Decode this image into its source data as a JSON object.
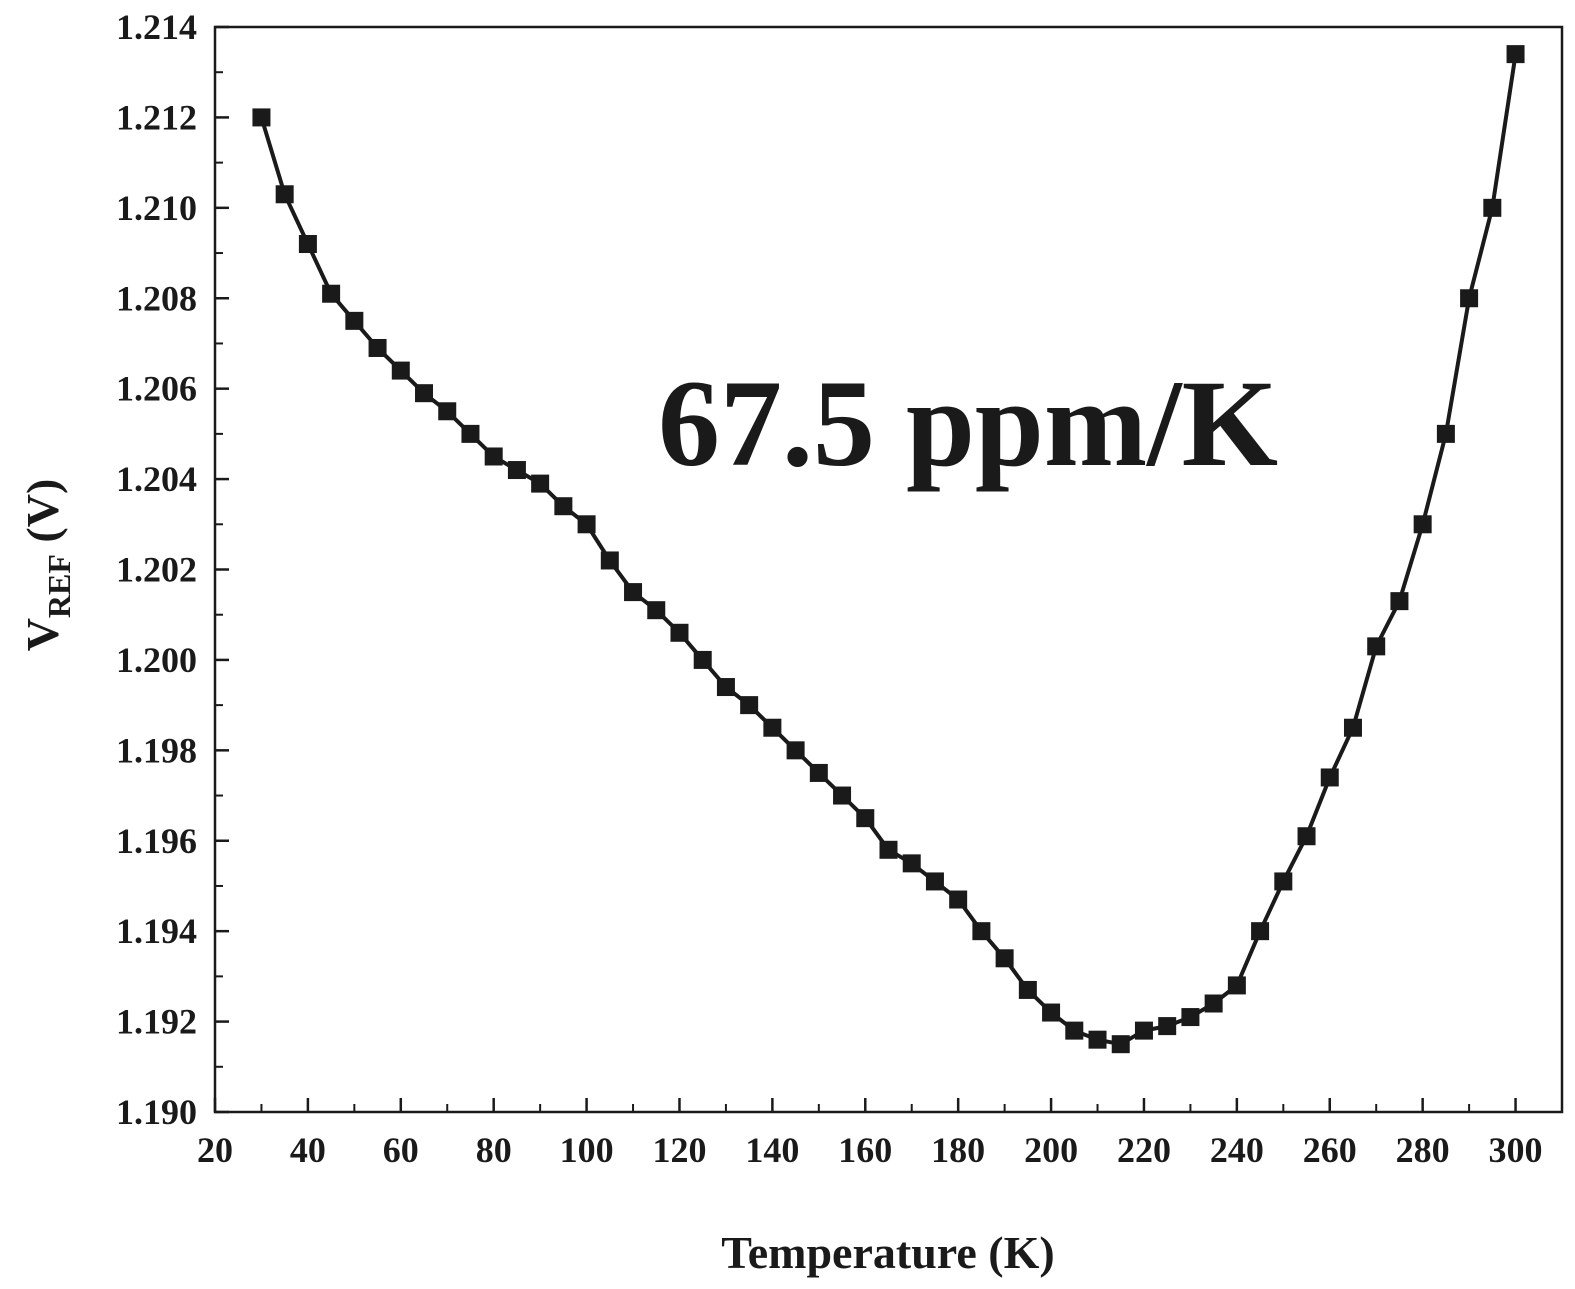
{
  "chart_data": {
    "type": "line",
    "title": "",
    "xlabel": "Temperature (K)",
    "ylabel": {
      "main": "V",
      "subscript": "REF",
      "unit": " (V)"
    },
    "annotation": "67.5 ppm/K",
    "xlim": [
      20,
      310
    ],
    "ylim": [
      1.19,
      1.214
    ],
    "xticks": [
      {
        "value": 20,
        "label": "20"
      },
      {
        "value": 40,
        "label": "40"
      },
      {
        "value": 60,
        "label": "60"
      },
      {
        "value": 80,
        "label": "80"
      },
      {
        "value": 100,
        "label": "100"
      },
      {
        "value": 120,
        "label": "120"
      },
      {
        "value": 140,
        "label": "140"
      },
      {
        "value": 160,
        "label": "160"
      },
      {
        "value": 180,
        "label": "180"
      },
      {
        "value": 200,
        "label": "200"
      },
      {
        "value": 220,
        "label": "220"
      },
      {
        "value": 240,
        "label": "240"
      },
      {
        "value": 260,
        "label": "260"
      },
      {
        "value": 280,
        "label": "280"
      },
      {
        "value": 300,
        "label": "300"
      }
    ],
    "yticks": [
      {
        "value": 1.19,
        "label": "1.190"
      },
      {
        "value": 1.192,
        "label": "1.192"
      },
      {
        "value": 1.194,
        "label": "1.194"
      },
      {
        "value": 1.196,
        "label": "1.196"
      },
      {
        "value": 1.198,
        "label": "1.198"
      },
      {
        "value": 1.2,
        "label": "1.200"
      },
      {
        "value": 1.202,
        "label": "1.202"
      },
      {
        "value": 1.204,
        "label": "1.204"
      },
      {
        "value": 1.206,
        "label": "1.206"
      },
      {
        "value": 1.208,
        "label": "1.208"
      },
      {
        "value": 1.21,
        "label": "1.210"
      },
      {
        "value": 1.212,
        "label": "1.212"
      },
      {
        "value": 1.214,
        "label": "1.214"
      }
    ],
    "grid": false,
    "series": [
      {
        "marker": "square",
        "color": "#1a1a1a",
        "x": [
          30,
          35,
          40,
          45,
          50,
          55,
          60,
          65,
          70,
          75,
          80,
          85,
          90,
          95,
          100,
          105,
          110,
          115,
          120,
          125,
          130,
          135,
          140,
          145,
          150,
          155,
          160,
          165,
          170,
          175,
          180,
          185,
          190,
          195,
          200,
          205,
          210,
          215,
          220,
          225,
          230,
          235,
          240,
          245,
          250,
          255,
          260,
          265,
          270,
          275,
          280,
          285,
          290,
          295,
          300
        ],
        "y": [
          1.212,
          1.2103,
          1.2092,
          1.2081,
          1.2075,
          1.2069,
          1.2064,
          1.2059,
          1.2055,
          1.205,
          1.2045,
          1.2042,
          1.2039,
          1.2034,
          1.203,
          1.2022,
          1.2015,
          1.2011,
          1.2006,
          1.2,
          1.1994,
          1.199,
          1.1985,
          1.198,
          1.1975,
          1.197,
          1.1965,
          1.1958,
          1.1955,
          1.1951,
          1.1947,
          1.194,
          1.1934,
          1.1927,
          1.1922,
          1.1918,
          1.1916,
          1.1915,
          1.1918,
          1.1919,
          1.1921,
          1.1924,
          1.1928,
          1.194,
          1.1951,
          1.1961,
          1.1974,
          1.1985,
          1.2003,
          1.2013,
          1.203,
          1.205,
          1.208,
          1.21,
          1.2134
        ]
      }
    ]
  }
}
